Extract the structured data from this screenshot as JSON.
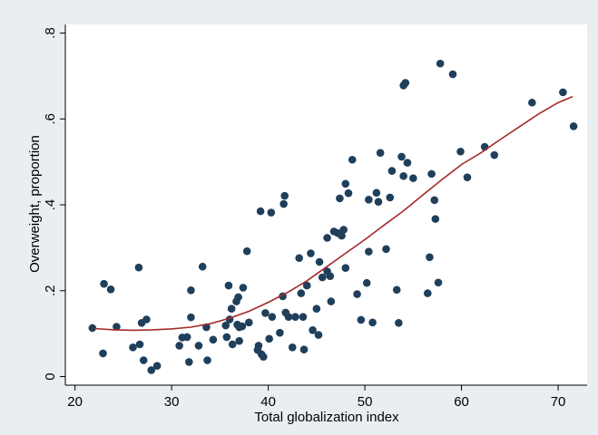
{
  "chart_data": {
    "type": "scatter",
    "title": "",
    "xlabel": "Total globalization index",
    "ylabel": "Overweight, proportion",
    "xlim": [
      19,
      73
    ],
    "ylim": [
      -0.02,
      0.82
    ],
    "xticks": [
      20,
      30,
      40,
      50,
      60,
      70
    ],
    "xtick_labels": [
      "20",
      "30",
      "40",
      "50",
      "60",
      "70"
    ],
    "yticks": [
      0,
      0.2,
      0.4,
      0.6,
      0.8
    ],
    "ytick_labels": [
      "0",
      ".2",
      ".4",
      ".6",
      ".8"
    ],
    "grid": false,
    "legend": "none",
    "colors": {
      "points": "#1f3f5b",
      "fit_line": "#a52a2a",
      "plot_bg": "#ffffff",
      "outer_bg": "#e9eef3"
    },
    "series": [
      {
        "kind": "points",
        "x": [
          21.8,
          22.9,
          23.0,
          23.7,
          24.3,
          26.0,
          26.6,
          26.7,
          26.9,
          27.1,
          27.4,
          27.9,
          28.5,
          30.8,
          31.1,
          31.6,
          31.8,
          32.0,
          32.0,
          32.8,
          33.2,
          33.6,
          33.7,
          34.3,
          35.6,
          35.7,
          35.9,
          36.0,
          36.2,
          36.3,
          36.7,
          36.8,
          36.9,
          37.0,
          37.0,
          37.3,
          37.4,
          37.8,
          38.0,
          38.9,
          39.0,
          39.2,
          39.3,
          39.5,
          39.7,
          40.1,
          40.3,
          40.4,
          41.2,
          41.5,
          41.6,
          41.7,
          41.8,
          42.1,
          42.5,
          42.8,
          43.2,
          43.4,
          43.6,
          43.7,
          44.0,
          44.4,
          44.6,
          45.0,
          45.2,
          45.3,
          45.6,
          46.1,
          46.1,
          46.4,
          46.5,
          46.8,
          47.2,
          47.4,
          47.6,
          47.8,
          48.0,
          48.0,
          48.3,
          48.7,
          49.2,
          49.6,
          50.2,
          50.4,
          50.4,
          50.8,
          51.2,
          51.4,
          51.6,
          52.2,
          52.6,
          52.8,
          53.3,
          53.5,
          53.8,
          54.0,
          54.0,
          54.2,
          54.4,
          55.0,
          56.5,
          56.7,
          56.9,
          57.2,
          57.3,
          57.6,
          57.8,
          59.1,
          59.9,
          60.6,
          62.4,
          63.4,
          67.3,
          70.5,
          71.6
        ],
        "y": [
          0.113,
          0.054,
          0.216,
          0.203,
          0.116,
          0.068,
          0.254,
          0.075,
          0.125,
          0.038,
          0.133,
          0.015,
          0.025,
          0.072,
          0.091,
          0.092,
          0.034,
          0.138,
          0.201,
          0.072,
          0.256,
          0.115,
          0.038,
          0.086,
          0.119,
          0.092,
          0.212,
          0.133,
          0.158,
          0.075,
          0.175,
          0.121,
          0.185,
          0.115,
          0.083,
          0.117,
          0.207,
          0.292,
          0.126,
          0.062,
          0.072,
          0.385,
          0.052,
          0.046,
          0.148,
          0.088,
          0.382,
          0.139,
          0.102,
          0.187,
          0.402,
          0.421,
          0.149,
          0.139,
          0.068,
          0.139,
          0.276,
          0.194,
          0.139,
          0.063,
          0.212,
          0.287,
          0.108,
          0.158,
          0.097,
          0.267,
          0.231,
          0.323,
          0.245,
          0.234,
          0.175,
          0.338,
          0.334,
          0.415,
          0.328,
          0.342,
          0.449,
          0.253,
          0.427,
          0.505,
          0.192,
          0.132,
          0.218,
          0.291,
          0.412,
          0.126,
          0.428,
          0.407,
          0.521,
          0.297,
          0.417,
          0.479,
          0.202,
          0.125,
          0.512,
          0.467,
          0.678,
          0.684,
          0.498,
          0.462,
          0.194,
          0.278,
          0.472,
          0.411,
          0.367,
          0.219,
          0.729,
          0.704,
          0.524,
          0.464,
          0.535,
          0.516,
          0.638,
          0.662,
          0.583
        ]
      },
      {
        "kind": "fit-line",
        "x": [
          22,
          24,
          26,
          28,
          30,
          32,
          34,
          36,
          38,
          40,
          42,
          44,
          46,
          48,
          50,
          52,
          54,
          56,
          58,
          60,
          62,
          64,
          66,
          68,
          70,
          71.5
        ],
        "y": [
          0.112,
          0.109,
          0.108,
          0.109,
          0.111,
          0.115,
          0.123,
          0.136,
          0.152,
          0.173,
          0.196,
          0.223,
          0.255,
          0.287,
          0.319,
          0.353,
          0.386,
          0.423,
          0.459,
          0.494,
          0.521,
          0.552,
          0.582,
          0.612,
          0.638,
          0.652
        ]
      }
    ]
  }
}
